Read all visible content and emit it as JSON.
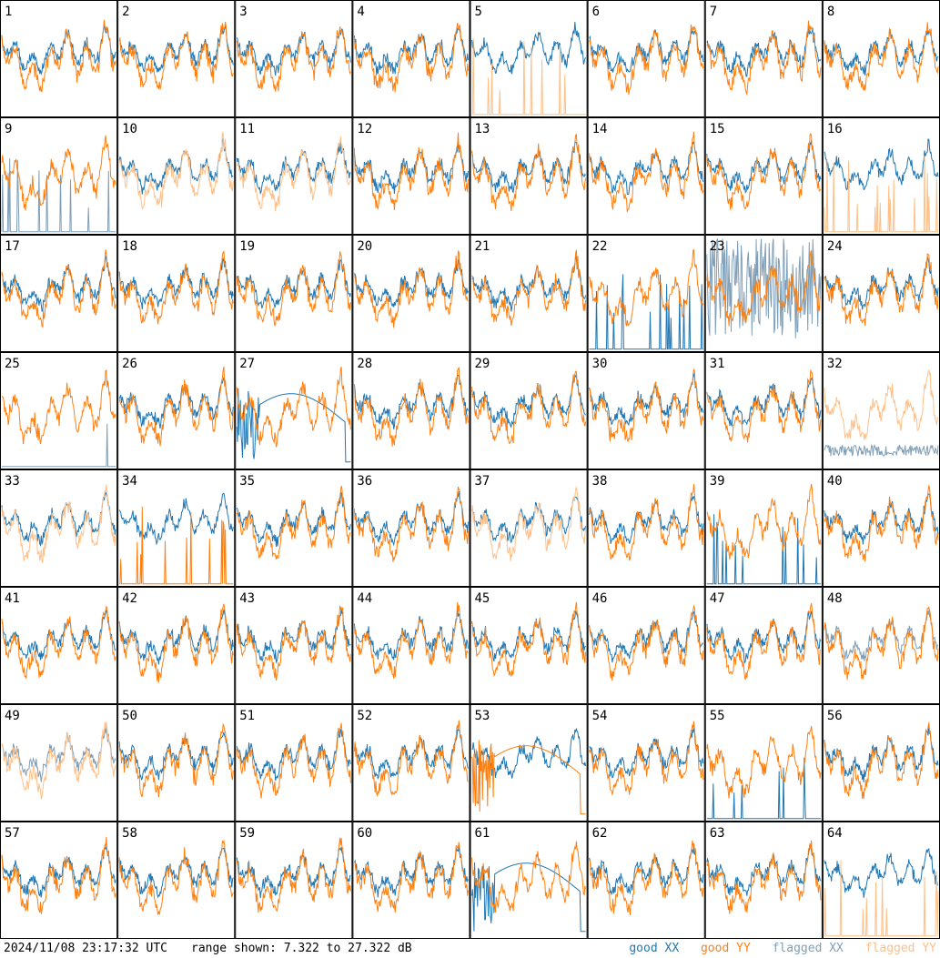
{
  "footer": {
    "timestamp": "2024/11/08 23:17:32 UTC",
    "range_text": "range shown: 7.322 to 27.322 dB"
  },
  "legend": [
    {
      "label": "good XX",
      "color": "#1f77b4"
    },
    {
      "label": "good YY",
      "color": "#ff7f0e"
    },
    {
      "label": "flagged XX",
      "color": "#7f9fb8"
    },
    {
      "label": "flagged YY",
      "color": "#ffbf87"
    }
  ],
  "chart_data": {
    "type": "line",
    "layout": "8x8 small multiples of per-antenna spectra",
    "y_range_db": [
      7.322,
      27.322
    ],
    "panel_labels": [
      "1",
      "2",
      "3",
      "4",
      "5",
      "6",
      "7",
      "8",
      "9",
      "10",
      "11",
      "12",
      "13",
      "14",
      "15",
      "16",
      "17",
      "18",
      "19",
      "20",
      "21",
      "22",
      "23",
      "24",
      "25",
      "26",
      "27",
      "28",
      "29",
      "30",
      "31",
      "32",
      "33",
      "34",
      "35",
      "36",
      "37",
      "38",
      "39",
      "40",
      "41",
      "42",
      "43",
      "44",
      "45",
      "46",
      "47",
      "48",
      "49",
      "50",
      "51",
      "52",
      "53",
      "54",
      "55",
      "56",
      "57",
      "58",
      "59",
      "60",
      "61",
      "62",
      "63",
      "64"
    ],
    "panel_status": {
      "1": {
        "xx": "good",
        "yy": "good"
      },
      "5": {
        "xx": "good",
        "yy": "flagged",
        "yy_shape": "spiky"
      },
      "9": {
        "xx": "flagged",
        "yy": "good",
        "xx_shape": "spiky"
      },
      "10": {
        "xx": "good",
        "yy": "flagged"
      },
      "11": {
        "xx": "good",
        "yy": "flagged"
      },
      "16": {
        "xx": "good",
        "yy": "flagged",
        "yy_shape": "spiky"
      },
      "22": {
        "xx": "good",
        "yy": "good",
        "xx_shape": "spiky"
      },
      "23": {
        "xx": "flagged",
        "yy": "good",
        "xx_shape": "noisy"
      },
      "25": {
        "xx": "flagged",
        "yy": "good",
        "xx_shape": "spike"
      },
      "27": {
        "xx": "good",
        "yy": "good",
        "xx_shape": "smooth-hump"
      },
      "32": {
        "xx": "flagged",
        "yy": "flagged",
        "xx_shape": "low"
      },
      "33": {
        "xx": "good",
        "yy": "flagged"
      },
      "34": {
        "xx": "good",
        "yy": "good",
        "yy_shape": "spiky"
      },
      "37": {
        "xx": "good",
        "yy": "flagged"
      },
      "39": {
        "xx": "good",
        "yy": "good",
        "xx_shape": "spiky"
      },
      "48": {
        "xx": "flagged",
        "yy": "good"
      },
      "49": {
        "xx": "flagged",
        "yy": "flagged"
      },
      "53": {
        "xx": "good",
        "yy": "good",
        "yy_shape": "smooth-hump"
      },
      "55": {
        "xx": "good",
        "yy": "good",
        "xx_shape": "spiky"
      },
      "61": {
        "xx": "good",
        "yy": "good",
        "xx_shape": "smooth-hump"
      },
      "64": {
        "xx": "good",
        "yy": "flagged",
        "yy_shape": "spiky"
      }
    }
  }
}
